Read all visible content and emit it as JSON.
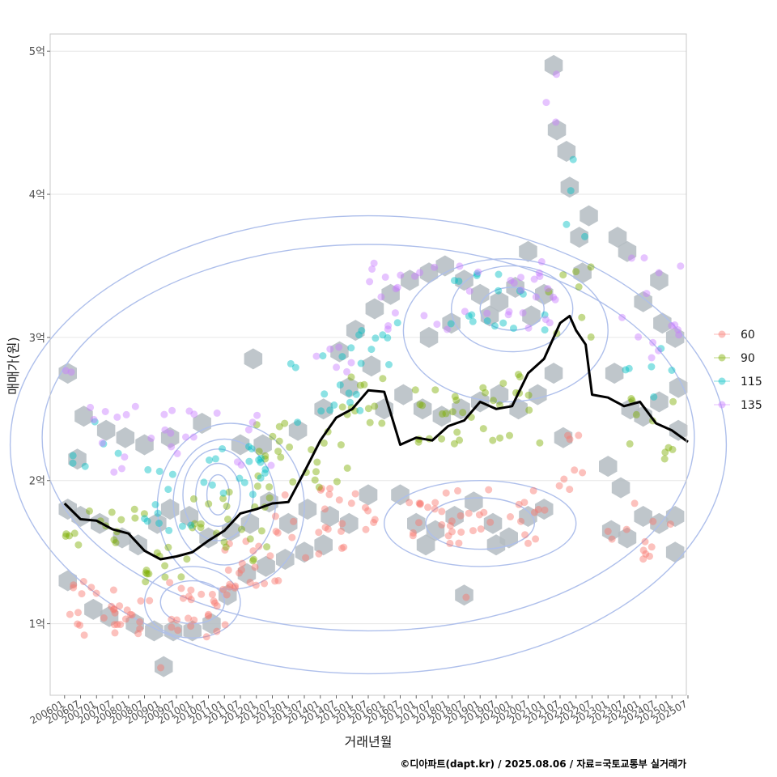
{
  "chart_data": {
    "type": "scatter",
    "title": "",
    "xlabel": "거래년월",
    "ylabel": "매매가(원)",
    "caption": "©디아파트(dapt.kr) / 2025.08.06 / 자료=국토교통부 실거래가",
    "ylim": [
      0.5,
      5.12
    ],
    "xlim": [
      2005.55,
      2025.45
    ],
    "y_ticks": [
      {
        "value": 1,
        "label": "1억"
      },
      {
        "value": 2,
        "label": "2억"
      },
      {
        "value": 3,
        "label": "3억"
      },
      {
        "value": 4,
        "label": "4억"
      },
      {
        "value": 5,
        "label": "5억"
      }
    ],
    "x_ticks": [
      "200601",
      "200607",
      "200701",
      "200707",
      "200801",
      "200807",
      "200901",
      "200907",
      "201001",
      "201007",
      "201101",
      "201107",
      "201201",
      "201207",
      "201301",
      "201307",
      "201401",
      "201407",
      "201501",
      "201507",
      "201601",
      "201607",
      "201701",
      "201707",
      "201801",
      "201807",
      "201901",
      "201907",
      "202001",
      "202007",
      "202101",
      "202107",
      "202201",
      "202207",
      "202301",
      "202307",
      "202401",
      "202407",
      "202501",
      "202507"
    ],
    "legend": {
      "position": "right",
      "entries": [
        {
          "label": "60",
          "color": "#F8766D"
        },
        {
          "label": "90",
          "color": "#7CAE00"
        },
        {
          "label": "115",
          "color": "#00BFC4"
        },
        {
          "label": "135",
          "color": "#C77CFF"
        }
      ]
    },
    "colors": {
      "trend": "#000000",
      "hex": "#b4bcc2",
      "contour": "#aebfeb",
      "grid": "#e6e6e6",
      "panel_border": "#c8c8c8"
    },
    "trend_line": {
      "name": "moving average",
      "x": [
        2006.0,
        2006.5,
        2007.0,
        2007.5,
        2008.0,
        2008.5,
        2009.0,
        2009.5,
        2010.0,
        2010.5,
        2011.0,
        2011.5,
        2012.0,
        2012.5,
        2013.0,
        2013.5,
        2014.0,
        2014.5,
        2015.0,
        2015.5,
        2016.0,
        2016.5,
        2017.0,
        2017.5,
        2018.0,
        2018.5,
        2019.0,
        2019.5,
        2020.0,
        2020.5,
        2021.0,
        2021.5,
        2021.8,
        2022.0,
        2022.3,
        2022.5,
        2023.0,
        2023.5,
        2024.0,
        2024.5,
        2025.0,
        2025.5
      ],
      "y": [
        1.84,
        1.73,
        1.72,
        1.66,
        1.63,
        1.51,
        1.45,
        1.47,
        1.5,
        1.58,
        1.65,
        1.77,
        1.8,
        1.84,
        1.85,
        2.06,
        2.28,
        2.44,
        2.5,
        2.63,
        2.62,
        2.25,
        2.3,
        2.28,
        2.38,
        2.42,
        2.55,
        2.5,
        2.52,
        2.75,
        2.85,
        3.1,
        3.15,
        3.05,
        2.95,
        2.6,
        2.58,
        2.52,
        2.55,
        2.4,
        2.35,
        2.27
      ]
    },
    "contours": [
      {
        "cx": 2010.8,
        "cy": 1.9,
        "rx": 0.35,
        "ry": 0.14
      },
      {
        "cx": 2010.8,
        "cy": 1.9,
        "rx": 0.7,
        "ry": 0.22
      },
      {
        "cx": 2010.8,
        "cy": 1.9,
        "rx": 1.1,
        "ry": 0.32
      },
      {
        "cx": 2011.0,
        "cy": 1.85,
        "rx": 1.6,
        "ry": 0.44
      },
      {
        "cx": 2011.2,
        "cy": 1.82,
        "rx": 2.3,
        "ry": 0.58
      },
      {
        "cx": 2010.0,
        "cy": 1.15,
        "rx": 1.0,
        "ry": 0.15
      },
      {
        "cx": 2010.0,
        "cy": 1.15,
        "rx": 1.5,
        "ry": 0.25
      },
      {
        "cx": 2020.0,
        "cy": 3.2,
        "rx": 1.0,
        "ry": 0.15
      },
      {
        "cx": 2020.0,
        "cy": 3.2,
        "rx": 1.9,
        "ry": 0.3
      },
      {
        "cx": 2019.8,
        "cy": 3.05,
        "rx": 3.2,
        "ry": 0.5
      },
      {
        "cx": 2019.0,
        "cy": 1.7,
        "rx": 1.7,
        "ry": 0.18
      },
      {
        "cx": 2019.0,
        "cy": 1.7,
        "rx": 3.0,
        "ry": 0.3
      },
      {
        "cx": 2015.5,
        "cy": 2.3,
        "rx": 10.2,
        "ry": 1.35
      },
      {
        "cx": 2015.5,
        "cy": 2.25,
        "rx": 11.2,
        "ry": 1.6
      }
    ],
    "hex_bins": [
      [
        2006.1,
        2.75
      ],
      [
        2006.6,
        2.45
      ],
      [
        2007.3,
        2.35
      ],
      [
        2006.4,
        2.15
      ],
      [
        2007.9,
        2.3
      ],
      [
        2008.5,
        2.25
      ],
      [
        2009.3,
        2.3
      ],
      [
        2010.3,
        2.4
      ],
      [
        2011.5,
        2.25
      ],
      [
        2012.2,
        2.25
      ],
      [
        2013.3,
        2.35
      ],
      [
        2014.1,
        2.5
      ],
      [
        2011.9,
        2.85
      ],
      [
        2006.1,
        1.8
      ],
      [
        2006.5,
        1.75
      ],
      [
        2007.1,
        1.7
      ],
      [
        2007.8,
        1.6
      ],
      [
        2008.3,
        1.55
      ],
      [
        2008.9,
        1.7
      ],
      [
        2009.3,
        1.8
      ],
      [
        2009.9,
        1.75
      ],
      [
        2010.5,
        1.6
      ],
      [
        2011.2,
        1.65
      ],
      [
        2011.8,
        1.7
      ],
      [
        2012.4,
        1.85
      ],
      [
        2013.0,
        1.7
      ],
      [
        2013.6,
        1.8
      ],
      [
        2014.3,
        1.75
      ],
      [
        2014.9,
        1.7
      ],
      [
        2015.5,
        1.9
      ],
      [
        2006.1,
        1.3
      ],
      [
        2006.9,
        1.1
      ],
      [
        2007.4,
        1.05
      ],
      [
        2008.2,
        1.0
      ],
      [
        2008.8,
        0.95
      ],
      [
        2009.4,
        0.95
      ],
      [
        2010.0,
        0.95
      ],
      [
        2010.6,
        1.0
      ],
      [
        2011.1,
        1.2
      ],
      [
        2011.7,
        1.35
      ],
      [
        2012.3,
        1.4
      ],
      [
        2012.9,
        1.45
      ],
      [
        2013.5,
        1.5
      ],
      [
        2014.1,
        1.55
      ],
      [
        2009.1,
        0.7
      ],
      [
        2014.6,
        2.9
      ],
      [
        2015.1,
        3.05
      ],
      [
        2015.7,
        3.2
      ],
      [
        2016.2,
        3.3
      ],
      [
        2016.8,
        3.4
      ],
      [
        2017.4,
        3.45
      ],
      [
        2017.9,
        3.5
      ],
      [
        2018.5,
        3.4
      ],
      [
        2019.0,
        3.3
      ],
      [
        2019.6,
        3.25
      ],
      [
        2020.1,
        3.35
      ],
      [
        2020.5,
        3.6
      ],
      [
        2021.0,
        3.3
      ],
      [
        2018.1,
        3.1
      ],
      [
        2019.3,
        3.15
      ],
      [
        2020.6,
        3.15
      ],
      [
        2017.4,
        3.0
      ],
      [
        2014.9,
        2.65
      ],
      [
        2015.6,
        2.8
      ],
      [
        2016.0,
        2.5
      ],
      [
        2016.6,
        2.6
      ],
      [
        2017.2,
        2.5
      ],
      [
        2017.8,
        2.45
      ],
      [
        2018.4,
        2.5
      ],
      [
        2019.0,
        2.55
      ],
      [
        2019.6,
        2.6
      ],
      [
        2020.2,
        2.5
      ],
      [
        2020.8,
        2.6
      ],
      [
        2021.3,
        2.75
      ],
      [
        2021.6,
        2.3
      ],
      [
        2017.0,
        1.7
      ],
      [
        2017.6,
        1.65
      ],
      [
        2018.2,
        1.75
      ],
      [
        2018.8,
        1.85
      ],
      [
        2019.4,
        1.7
      ],
      [
        2019.9,
        1.6
      ],
      [
        2020.5,
        1.75
      ],
      [
        2021.0,
        1.8
      ],
      [
        2016.5,
        1.9
      ],
      [
        2018.5,
        1.2
      ],
      [
        2017.3,
        1.55
      ],
      [
        2019.5,
        1.55
      ],
      [
        2021.3,
        4.9
      ],
      [
        2021.4,
        4.45
      ],
      [
        2021.7,
        4.3
      ],
      [
        2021.8,
        4.05
      ],
      [
        2022.4,
        3.85
      ],
      [
        2022.1,
        3.7
      ],
      [
        2022.2,
        3.45
      ],
      [
        2023.3,
        3.7
      ],
      [
        2023.6,
        3.6
      ],
      [
        2024.6,
        3.4
      ],
      [
        2024.1,
        3.25
      ],
      [
        2024.7,
        3.1
      ],
      [
        2025.1,
        3.0
      ],
      [
        2025.2,
        2.65
      ],
      [
        2023.2,
        2.75
      ],
      [
        2023.7,
        2.5
      ],
      [
        2024.1,
        2.45
      ],
      [
        2024.6,
        2.55
      ],
      [
        2025.2,
        2.35
      ],
      [
        2023.0,
        2.1
      ],
      [
        2023.4,
        1.95
      ],
      [
        2023.1,
        1.65
      ],
      [
        2023.6,
        1.6
      ],
      [
        2024.1,
        1.75
      ],
      [
        2024.6,
        1.7
      ],
      [
        2025.1,
        1.75
      ],
      [
        2025.1,
        1.5
      ]
    ],
    "scatter_clusters": [
      {
        "series": "60",
        "clusters": [
          {
            "x": [
              2006.0,
              2009.5
            ],
            "y": [
              0.9,
              1.3
            ],
            "n": 34
          },
          {
            "x": [
              2009.5,
              2011.2
            ],
            "y": [
              0.9,
              1.25
            ],
            "n": 22
          },
          {
            "x": [
              2011.0,
              2013.0
            ],
            "y": [
              1.25,
              1.6
            ],
            "n": 20
          },
          {
            "x": [
              2012.5,
              2015.8
            ],
            "y": [
              1.45,
              1.95
            ],
            "n": 28
          },
          {
            "x": [
              2016.5,
              2021.2
            ],
            "y": [
              1.55,
              1.95
            ],
            "n": 40
          },
          {
            "x": [
              2021.4,
              2022.3
            ],
            "y": [
              1.9,
              2.35
            ],
            "n": 8
          },
          {
            "x": [
              2023.0,
              2025.4
            ],
            "y": [
              1.45,
              1.85
            ],
            "n": 12
          },
          {
            "x": [
              2018.5,
              2018.6
            ],
            "y": [
              1.18,
              1.22
            ],
            "n": 1
          },
          {
            "x": [
              2009.0,
              2009.1
            ],
            "y": [
              0.68,
              0.72
            ],
            "n": 1
          }
        ]
      },
      {
        "series": "90",
        "clusters": [
          {
            "x": [
              2006.0,
              2008.6
            ],
            "y": [
              1.55,
              1.8
            ],
            "n": 16
          },
          {
            "x": [
              2008.4,
              2010.0
            ],
            "y": [
              1.25,
              1.55
            ],
            "n": 12
          },
          {
            "x": [
              2010.0,
              2012.5
            ],
            "y": [
              1.4,
              2.0
            ],
            "n": 22
          },
          {
            "x": [
              2012.0,
              2015.0
            ],
            "y": [
              1.95,
              2.4
            ],
            "n": 26
          },
          {
            "x": [
              2014.5,
              2016.0
            ],
            "y": [
              2.4,
              2.75
            ],
            "n": 12
          },
          {
            "x": [
              2016.8,
              2020.9
            ],
            "y": [
              2.2,
              2.75
            ],
            "n": 34
          },
          {
            "x": [
              2021.0,
              2022.5
            ],
            "y": [
              3.0,
              3.5
            ],
            "n": 8
          },
          {
            "x": [
              2023.5,
              2025.4
            ],
            "y": [
              2.15,
              2.65
            ],
            "n": 10
          }
        ]
      },
      {
        "series": "115",
        "clusters": [
          {
            "x": [
              2006.0,
              2008.2
            ],
            "y": [
              2.05,
              2.45
            ],
            "n": 6
          },
          {
            "x": [
              2008.2,
              2010.0
            ],
            "y": [
              1.65,
              2.1
            ],
            "n": 12
          },
          {
            "x": [
              2010.3,
              2012.6
            ],
            "y": [
              1.85,
              2.25
            ],
            "n": 18
          },
          {
            "x": [
              2013.0,
              2015.3
            ],
            "y": [
              2.4,
              2.9
            ],
            "n": 14
          },
          {
            "x": [
              2014.8,
              2016.5
            ],
            "y": [
              2.8,
              3.2
            ],
            "n": 10
          },
          {
            "x": [
              2018.0,
              2021.3
            ],
            "y": [
              3.0,
              3.45
            ],
            "n": 18
          },
          {
            "x": [
              2021.5,
              2022.3
            ],
            "y": [
              3.7,
              4.3
            ],
            "n": 4
          },
          {
            "x": [
              2023.5,
              2025.3
            ],
            "y": [
              2.5,
              2.95
            ],
            "n": 6
          }
        ]
      },
      {
        "series": "135",
        "clusters": [
          {
            "x": [
              2006.0,
              2006.3
            ],
            "y": [
              2.75,
              2.82
            ],
            "n": 2
          },
          {
            "x": [
              2006.5,
              2009.5
            ],
            "y": [
              2.05,
              2.55
            ],
            "n": 14
          },
          {
            "x": [
              2009.3,
              2012.5
            ],
            "y": [
              2.1,
              2.5
            ],
            "n": 14
          },
          {
            "x": [
              2013.5,
              2015.0
            ],
            "y": [
              2.75,
              2.95
            ],
            "n": 6
          },
          {
            "x": [
              2015.5,
              2021.4
            ],
            "y": [
              3.05,
              3.55
            ],
            "n": 40
          },
          {
            "x": [
              2021.0,
              2021.5
            ],
            "y": [
              4.45,
              4.95
            ],
            "n": 3
          },
          {
            "x": [
              2023.4,
              2025.4
            ],
            "y": [
              2.85,
              3.7
            ],
            "n": 14
          }
        ]
      }
    ]
  }
}
